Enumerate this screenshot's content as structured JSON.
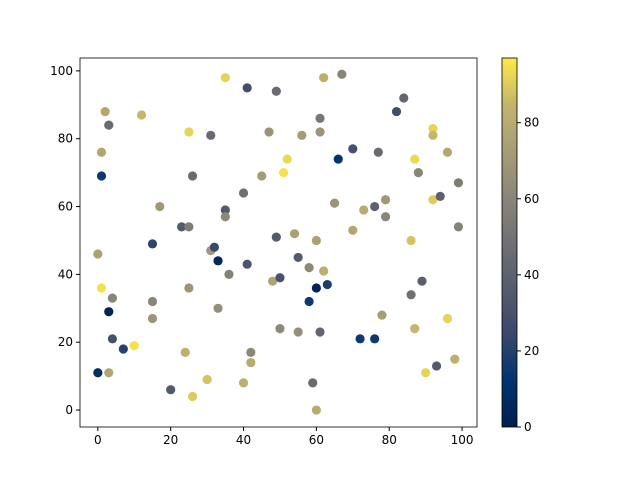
{
  "chart_data": {
    "type": "scatter",
    "x": [
      0,
      0,
      1,
      1,
      1,
      2,
      3,
      3,
      3,
      4,
      4,
      7,
      10,
      12,
      15,
      15,
      15,
      17,
      20,
      23,
      24,
      25,
      25,
      25,
      26,
      26,
      30,
      31,
      31,
      32,
      33,
      33,
      35,
      35,
      35,
      36,
      40,
      41,
      40,
      41,
      42,
      42,
      45,
      47,
      48,
      49,
      49,
      50,
      50,
      51,
      52,
      54,
      55,
      55,
      56,
      58,
      58,
      59,
      60,
      60,
      60,
      61,
      61,
      61,
      62,
      62,
      63,
      65,
      66,
      67,
      70,
      70,
      72,
      73,
      76,
      76,
      77,
      78,
      79,
      79,
      82,
      84,
      86,
      86,
      87,
      87,
      88,
      89,
      90,
      92,
      92,
      92,
      93,
      94,
      96,
      96,
      98,
      99,
      99
    ],
    "series": [
      {
        "values": [
          11,
          46,
          36,
          69,
          76,
          88,
          84,
          29,
          11,
          33,
          21,
          18,
          19,
          87,
          49,
          32,
          27,
          60,
          6,
          54,
          17,
          82,
          54,
          36,
          69,
          4,
          9,
          81,
          47,
          48,
          44,
          30,
          98,
          59,
          57,
          40,
          8,
          95,
          64,
          43,
          17,
          14,
          69,
          82,
          38,
          94,
          51,
          39,
          24,
          70,
          74,
          52,
          45,
          23,
          81,
          32,
          42,
          8,
          36,
          50,
          0,
          86,
          82,
          23,
          41,
          98,
          37,
          61,
          74,
          99,
          77,
          53,
          21,
          59,
          21,
          60,
          76,
          28,
          62,
          57,
          88,
          92,
          34,
          50,
          74,
          24,
          70,
          38,
          11,
          83,
          81,
          62,
          13,
          63,
          76,
          27,
          15,
          67,
          54
        ],
        "color_values": [
          8,
          75,
          95,
          15,
          78,
          78,
          45,
          3,
          78,
          60,
          30,
          20,
          95,
          85,
          22,
          60,
          68,
          70,
          35,
          35,
          82,
          92,
          55,
          68,
          45,
          90,
          88,
          45,
          70,
          25,
          5,
          65,
          92,
          35,
          62,
          58,
          82,
          28,
          48,
          32,
          62,
          80,
          72,
          68,
          76,
          45,
          35,
          30,
          62,
          95,
          93,
          75,
          35,
          65,
          72,
          15,
          62,
          45,
          2,
          75,
          80,
          52,
          68,
          42,
          82,
          82,
          18,
          68,
          12,
          60,
          30,
          78,
          15,
          80,
          15,
          40,
          45,
          73,
          70,
          60,
          28,
          42,
          48,
          88,
          93,
          85,
          60,
          38,
          92,
          92,
          85,
          90,
          35,
          40,
          78,
          92,
          82,
          55,
          58
        ]
      }
    ],
    "xlim": [
      -4.9,
      104.1
    ],
    "ylim": [
      -5,
      103.8
    ],
    "xticks": [
      0,
      20,
      40,
      60,
      80,
      100
    ],
    "yticks": [
      0,
      20,
      40,
      60,
      80,
      100
    ],
    "colormap": "cividis",
    "clim": [
      0,
      97
    ],
    "cticks": [
      0,
      20,
      40,
      60,
      80
    ]
  }
}
